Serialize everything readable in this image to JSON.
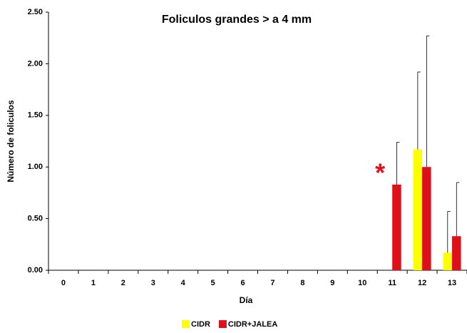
{
  "chart_data": {
    "type": "bar",
    "title": "Foliculos grandes > a 4 mm",
    "x_label": "Día",
    "y_label": "Número de foliculos",
    "categories": [
      "0",
      "1",
      "2",
      "3",
      "4",
      "5",
      "6",
      "7",
      "8",
      "9",
      "10",
      "11",
      "12",
      "13"
    ],
    "series": [
      {
        "name": "CIDR",
        "color": "#ffff00",
        "values": [
          0,
          0,
          0,
          0,
          0,
          0,
          0,
          0,
          0,
          0,
          0,
          0,
          1.17,
          0.17
        ],
        "errors": [
          0,
          0,
          0,
          0,
          0,
          0,
          0,
          0,
          0,
          0,
          0,
          0,
          0.75,
          0.4
        ]
      },
      {
        "name": "CIDR+JALEA",
        "color": "#e0101a",
        "values": [
          0,
          0,
          0,
          0,
          0,
          0,
          0,
          0,
          0,
          0,
          0,
          0.83,
          1.0,
          0.33
        ],
        "errors": [
          0,
          0,
          0,
          0,
          0,
          0,
          0,
          0,
          0,
          0,
          0,
          0.41,
          1.27,
          0.52
        ]
      }
    ],
    "annotations": [
      {
        "text": "*",
        "category": 11,
        "color": "#e0101a"
      }
    ],
    "ylim": [
      0,
      2.5
    ],
    "yticks": [
      {
        "value": 0,
        "label": "0.00"
      },
      {
        "value": 0.5,
        "label": "0.50"
      },
      {
        "value": 1,
        "label": "1.00"
      },
      {
        "value": 1.5,
        "label": "1.50"
      },
      {
        "value": 2,
        "label": "2.00"
      },
      {
        "value": 2.5,
        "label": "2.50"
      }
    ],
    "legend": "bottom"
  }
}
